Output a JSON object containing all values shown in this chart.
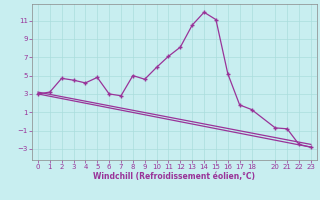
{
  "xlabel": "Windchill (Refroidissement éolien,°C)",
  "bg_color": "#c8eef0",
  "line_color": "#993399",
  "tick_color": "#993399",
  "x_ticks": [
    0,
    1,
    2,
    3,
    4,
    5,
    6,
    7,
    8,
    9,
    10,
    11,
    12,
    13,
    14,
    15,
    16,
    17,
    18,
    20,
    21,
    22,
    23
  ],
  "y_ticks": [
    -3,
    -1,
    1,
    3,
    5,
    7,
    9,
    11
  ],
  "xlim": [
    -0.5,
    23.5
  ],
  "ylim": [
    -4.2,
    12.8
  ],
  "main_series_x": [
    0,
    1,
    2,
    3,
    4,
    5,
    6,
    7,
    8,
    9,
    10,
    11,
    12,
    13,
    14,
    15,
    16,
    17,
    18,
    20,
    21,
    22,
    23
  ],
  "main_series_y": [
    3.0,
    3.2,
    4.7,
    4.5,
    4.2,
    4.8,
    3.0,
    2.8,
    5.0,
    4.6,
    5.9,
    7.1,
    8.1,
    10.5,
    11.9,
    11.1,
    5.2,
    1.8,
    1.3,
    -0.7,
    -0.8,
    -2.5,
    -2.8
  ],
  "trend1_x": [
    0,
    23
  ],
  "trend1_y": [
    3.0,
    -2.8
  ],
  "trend2_x": [
    0,
    23
  ],
  "trend2_y": [
    3.2,
    -2.5
  ],
  "grid_color": "#aadddd",
  "grid_linewidth": 0.5,
  "line_width": 0.9,
  "marker_size": 3.5,
  "xlabel_fontsize": 5.5,
  "tick_fontsize": 5.0
}
